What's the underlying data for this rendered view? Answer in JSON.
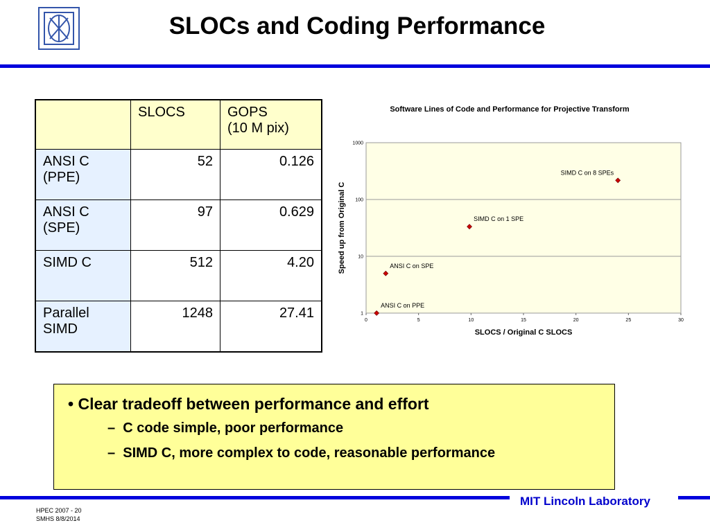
{
  "header": {
    "title": "SLOCs and Coding Performance"
  },
  "table": {
    "columns": [
      "SLOCS",
      "GOPS\n(10 M pix)"
    ],
    "rows": [
      [
        "ANSI C\n(PPE)",
        "52",
        "0.126"
      ],
      [
        "ANSI C\n(SPE)",
        "97",
        "0.629"
      ],
      [
        "SIMD C",
        "512",
        "4.20"
      ],
      [
        "Parallel\nSIMD",
        "1248",
        "27.41"
      ]
    ]
  },
  "chart_data": {
    "type": "scatter",
    "title": "Software Lines of Code and Performance for Projective Transform",
    "x_label": "SLOCS / Original C SLOCS",
    "y_label": "Speed up from Original C",
    "series": [
      {
        "name": "Speedup",
        "color": "#cc0000",
        "x": [
          1,
          1.87,
          9.85,
          24
        ],
        "values": [
          1,
          4.99,
          33.3,
          217
        ],
        "labels": [
          "ANSI C on PPE",
          "ANSI C on SPE",
          "SIMD C on 1 SPE",
          "SIMD C on 8 SPEs"
        ]
      }
    ],
    "xlim": [
      0,
      30
    ],
    "xticks": [
      0,
      5,
      10,
      15,
      20,
      25,
      30
    ],
    "ylim": [
      1,
      1000
    ],
    "yticks": [
      1,
      10,
      100,
      1000
    ],
    "y_scale": "log",
    "grid": true
  },
  "bullets": {
    "main": "Clear tradeoff between performance and effort",
    "sub": [
      "C code simple, poor performance",
      "SIMD C, more complex to code, reasonable performance"
    ]
  },
  "footer": {
    "lab": "MIT Lincoln Laboratory",
    "slide": "HPEC 2007 - 20",
    "note": "SMHS 8/8/2014"
  }
}
